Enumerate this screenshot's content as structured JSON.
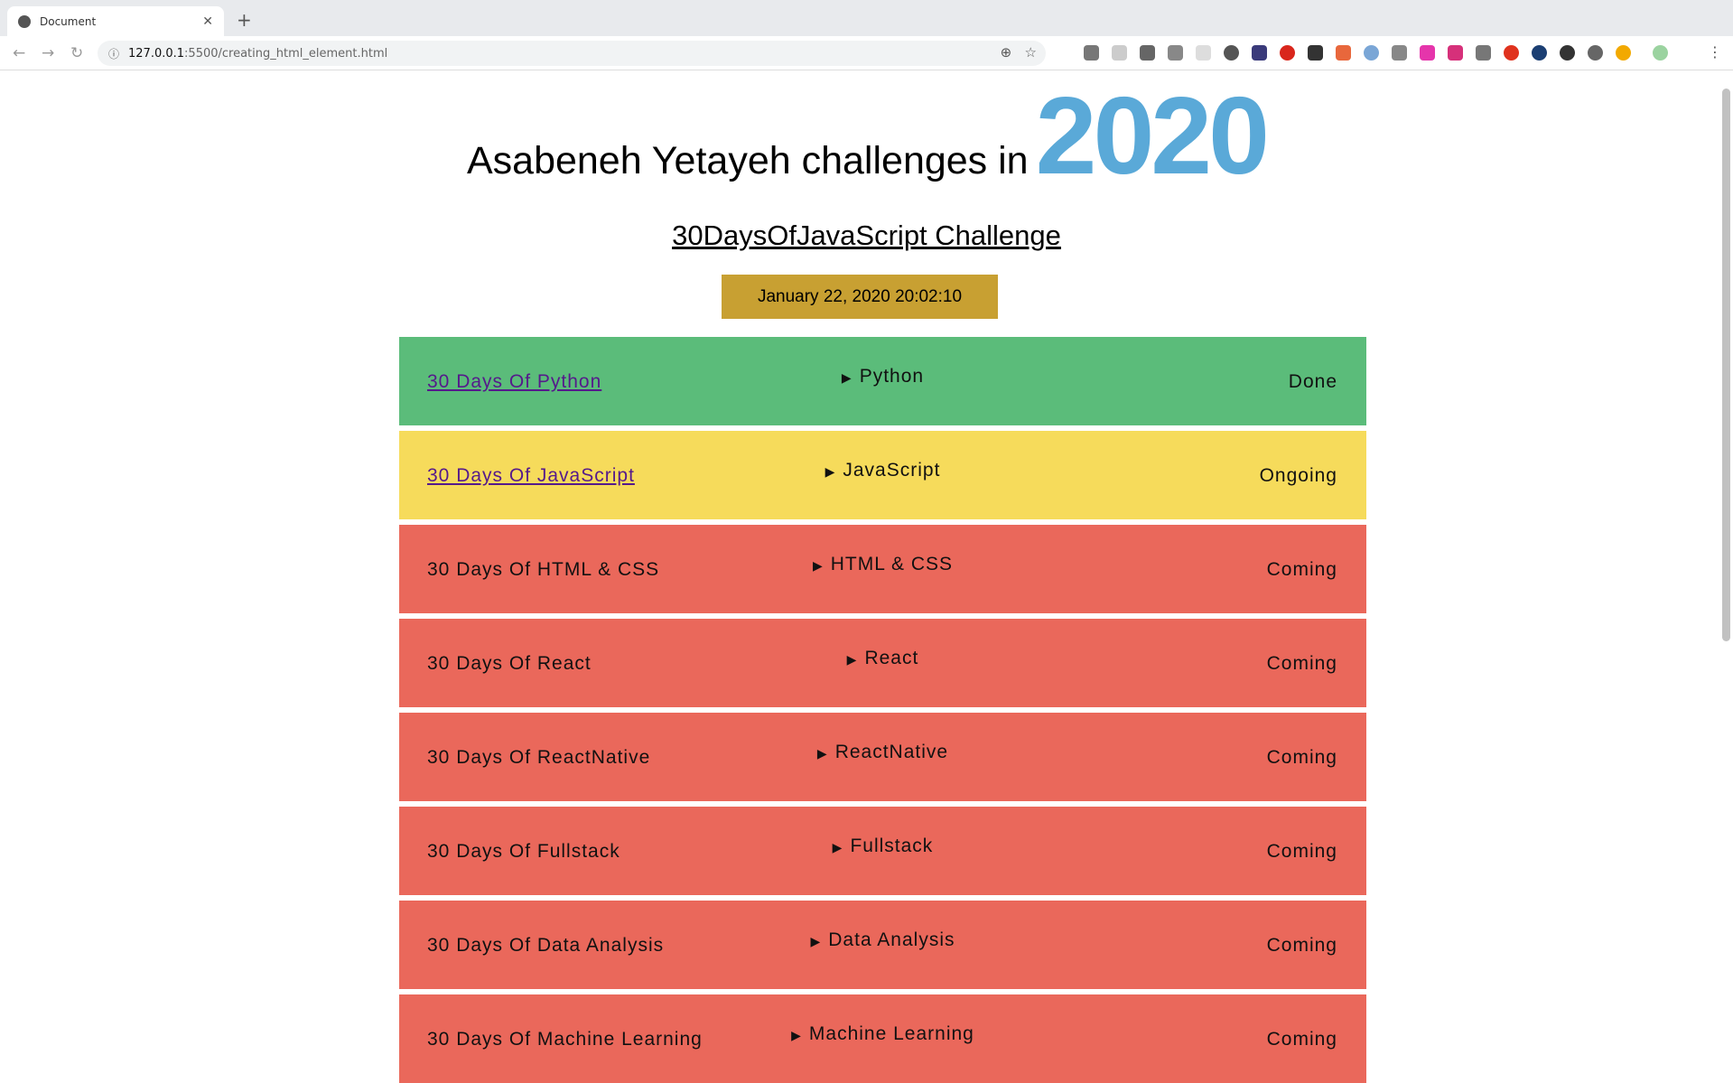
{
  "browser": {
    "tab_title": "Document",
    "url_host": "127.0.0.1",
    "url_path": ":5500/creating_html_element.html"
  },
  "header": {
    "title": "Asabeneh Yetayeh challenges in",
    "year": "2020",
    "subtitle": "30DaysOfJavaScript Challenge",
    "date": "January 22, 2020 20:02:10"
  },
  "colors": {
    "done": "#5bbc7a",
    "ongoing": "#f6db5b",
    "coming": "#ea685b",
    "year": "#5aa9d8",
    "date_bg": "#c8a032"
  },
  "challenges": [
    {
      "name": "30 Days Of Python",
      "topic": "Python",
      "status": "Done",
      "link": true
    },
    {
      "name": "30 Days Of JavaScript",
      "topic": "JavaScript",
      "status": "Ongoing",
      "link": true
    },
    {
      "name": "30 Days Of HTML & CSS",
      "topic": "HTML & CSS",
      "status": "Coming",
      "link": false
    },
    {
      "name": "30 Days Of React",
      "topic": "React",
      "status": "Coming",
      "link": false
    },
    {
      "name": "30 Days Of ReactNative",
      "topic": "ReactNative",
      "status": "Coming",
      "link": false
    },
    {
      "name": "30 Days Of Fullstack",
      "topic": "Fullstack",
      "status": "Coming",
      "link": false
    },
    {
      "name": "30 Days Of Data Analysis",
      "topic": "Data Analysis",
      "status": "Coming",
      "link": false
    },
    {
      "name": "30 Days Of Machine Learning",
      "topic": "Machine Learning",
      "status": "Coming",
      "link": false
    }
  ]
}
